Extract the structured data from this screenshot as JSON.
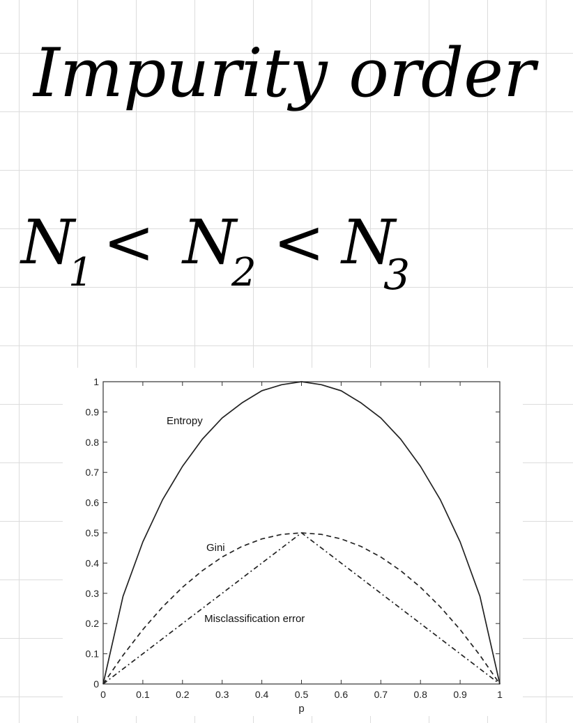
{
  "notes": {
    "title": "Impurity order",
    "inequality_parts": [
      "N",
      "1",
      "<",
      "N",
      "2",
      "<",
      "N",
      "3"
    ]
  },
  "chart_data": {
    "type": "line",
    "title": "",
    "xlabel": "p",
    "ylabel": "",
    "xlim": [
      0,
      1
    ],
    "ylim": [
      0,
      1
    ],
    "grid": false,
    "x_ticks": [
      "0",
      "0.1",
      "0.2",
      "0.3",
      "0.4",
      "0.5",
      "0.6",
      "0.7",
      "0.8",
      "0.9",
      "1"
    ],
    "y_ticks": [
      "0",
      "0.1",
      "0.2",
      "0.3",
      "0.4",
      "0.5",
      "0.6",
      "0.7",
      "0.8",
      "0.9",
      "1"
    ],
    "x": [
      0,
      0.05,
      0.1,
      0.15,
      0.2,
      0.25,
      0.3,
      0.35,
      0.4,
      0.45,
      0.5,
      0.55,
      0.6,
      0.65,
      0.7,
      0.75,
      0.8,
      0.85,
      0.9,
      0.95,
      1
    ],
    "series": [
      {
        "name": "Entropy",
        "style": "solid",
        "color": "#222222",
        "values": [
          0,
          0.29,
          0.47,
          0.61,
          0.72,
          0.81,
          0.88,
          0.93,
          0.97,
          0.99,
          1.0,
          0.99,
          0.97,
          0.93,
          0.88,
          0.81,
          0.72,
          0.61,
          0.47,
          0.29,
          0
        ]
      },
      {
        "name": "Gini",
        "style": "dashed",
        "color": "#222222",
        "values": [
          0,
          0.095,
          0.18,
          0.255,
          0.32,
          0.375,
          0.42,
          0.455,
          0.48,
          0.495,
          0.5,
          0.495,
          0.48,
          0.455,
          0.42,
          0.375,
          0.32,
          0.255,
          0.18,
          0.095,
          0
        ]
      },
      {
        "name": "Misclassification error",
        "style": "dashdot",
        "color": "#222222",
        "values": [
          0,
          0.05,
          0.1,
          0.15,
          0.2,
          0.25,
          0.3,
          0.35,
          0.4,
          0.45,
          0.5,
          0.45,
          0.4,
          0.35,
          0.3,
          0.25,
          0.2,
          0.15,
          0.1,
          0.05,
          0
        ]
      }
    ]
  }
}
